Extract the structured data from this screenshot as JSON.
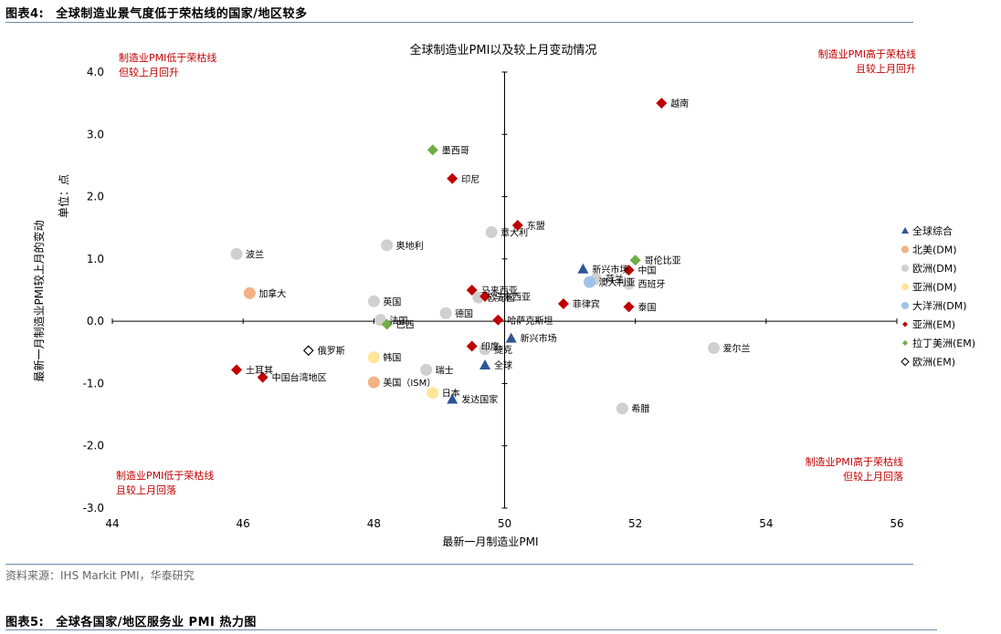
{
  "figure_title": {
    "number": "图表4:",
    "text": "全球制造业景气度低于荣枯线的国家/地区较多"
  },
  "source": "资料来源：IHS Markit PMI，华泰研究",
  "next_figure_title": {
    "number": "图表5:",
    "text": "全球各国家/地区服务业 PMI 热力图"
  },
  "chart_data": {
    "type": "scatter",
    "title": "全球制造业PMI以及较上月变动情况",
    "xlabel": "最新一月制造业PMI",
    "ylabel": "最新一月制造业PMI较上月的变动",
    "unit": "单位：点",
    "xlim": [
      44,
      56
    ],
    "ylim": [
      -3,
      4
    ],
    "xticks": [
      44,
      46,
      48,
      50,
      52,
      54,
      56
    ],
    "yticks": [
      -3,
      -2,
      -1,
      0,
      1,
      2,
      3,
      4
    ],
    "xtick_labels": [
      "44",
      "46",
      "48",
      "50",
      "52",
      "54",
      "56"
    ],
    "ytick_labels": [
      "-3.0",
      "-2.0",
      "-1.0",
      "0.0",
      "1.0",
      "2.0",
      "3.0",
      "4.0"
    ],
    "quadrant_labels": {
      "top_left": [
        "制造业PMI低于荣枯线",
        "但较上月回升"
      ],
      "top_right": [
        "制造业PMI高于荣枯线",
        "且较上月回升"
      ],
      "bottom_left": [
        "制造业PMI低于荣枯线",
        "且较上月回落"
      ],
      "bottom_right": [
        "制造业PMI高于荣枯线",
        "但较上月回落"
      ]
    },
    "legend_position": "right",
    "series": [
      {
        "name": "全球综合",
        "marker": "triangle",
        "color": "#2f5597",
        "points": [
          {
            "label": "全球",
            "x": 49.7,
            "y": -0.7
          },
          {
            "label": "新兴市场",
            "x": 50.1,
            "y": -0.27
          },
          {
            "label": "新兴市场",
            "x": 51.2,
            "y": 0.84
          },
          {
            "label": "发达国家",
            "x": 49.2,
            "y": -1.25
          }
        ]
      },
      {
        "name": "北美(DM)",
        "marker": "circle",
        "color": "#f4b183",
        "points": [
          {
            "label": "加拿大",
            "x": 46.1,
            "y": 0.45
          },
          {
            "label": "美国（ISM）",
            "x": 48.0,
            "y": -0.98
          }
        ]
      },
      {
        "name": "欧洲(DM)",
        "marker": "circle",
        "color": "#d0d0d0",
        "points": [
          {
            "label": "波兰",
            "x": 45.9,
            "y": 1.08
          },
          {
            "label": "奥地利",
            "x": 48.2,
            "y": 1.22
          },
          {
            "label": "意大利",
            "x": 49.8,
            "y": 1.43
          },
          {
            "label": "英国",
            "x": 48.0,
            "y": 0.32
          },
          {
            "label": "法国",
            "x": 48.1,
            "y": 0.02
          },
          {
            "label": "德国",
            "x": 49.1,
            "y": 0.13
          },
          {
            "label": "瑞士",
            "x": 48.8,
            "y": -0.78
          },
          {
            "label": "捷克",
            "x": 49.7,
            "y": -0.45
          },
          {
            "label": "欧元区",
            "x": 49.6,
            "y": 0.38
          },
          {
            "label": "荷兰",
            "x": 51.4,
            "y": 0.68
          },
          {
            "label": "西班牙",
            "x": 51.9,
            "y": 0.6
          },
          {
            "label": "希腊",
            "x": 51.8,
            "y": -1.4
          },
          {
            "label": "爱尔兰",
            "x": 53.2,
            "y": -0.43
          }
        ]
      },
      {
        "name": "亚洲(DM)",
        "marker": "circle",
        "color": "#ffe699",
        "points": [
          {
            "label": "韩国",
            "x": 48.0,
            "y": -0.58
          },
          {
            "label": "日本",
            "x": 48.9,
            "y": -1.15
          }
        ]
      },
      {
        "name": "大洋洲(DM)",
        "marker": "circle",
        "color": "#9dc3e6",
        "points": [
          {
            "label": "澳大利亚",
            "x": 51.3,
            "y": 0.63
          }
        ]
      },
      {
        "name": "亚洲(EM)",
        "marker": "diamond",
        "color": "#c00000",
        "points": [
          {
            "label": "越南",
            "x": 52.4,
            "y": 3.5
          },
          {
            "label": "印尼",
            "x": 49.2,
            "y": 2.29
          },
          {
            "label": "东盟",
            "x": 50.2,
            "y": 1.54
          },
          {
            "label": "马来西亚",
            "x": 49.5,
            "y": 0.5
          },
          {
            "label": "马来西亚",
            "x": 49.7,
            "y": 0.4
          },
          {
            "label": "菲律宾",
            "x": 50.9,
            "y": 0.28
          },
          {
            "label": "泰国",
            "x": 51.9,
            "y": 0.23
          },
          {
            "label": "中国",
            "x": 51.9,
            "y": 0.82
          },
          {
            "label": "哈萨克斯坦",
            "x": 49.9,
            "y": 0.02
          },
          {
            "label": "印度",
            "x": 49.5,
            "y": -0.4
          },
          {
            "label": "土耳其",
            "x": 45.9,
            "y": -0.78
          },
          {
            "label": "中国台湾地区",
            "x": 46.3,
            "y": -0.9
          }
        ]
      },
      {
        "name": "拉丁美洲(EM)",
        "marker": "diamond",
        "color": "#70ad47",
        "points": [
          {
            "label": "墨西哥",
            "x": 48.9,
            "y": 2.75
          },
          {
            "label": "哥伦比亚",
            "x": 52.0,
            "y": 0.98
          },
          {
            "label": "巴西",
            "x": 48.2,
            "y": -0.05
          }
        ]
      },
      {
        "name": "欧洲(EM)",
        "marker": "diamond-open",
        "color": "#000000",
        "points": [
          {
            "label": "俄罗斯",
            "x": 47.0,
            "y": -0.47
          }
        ]
      }
    ]
  }
}
